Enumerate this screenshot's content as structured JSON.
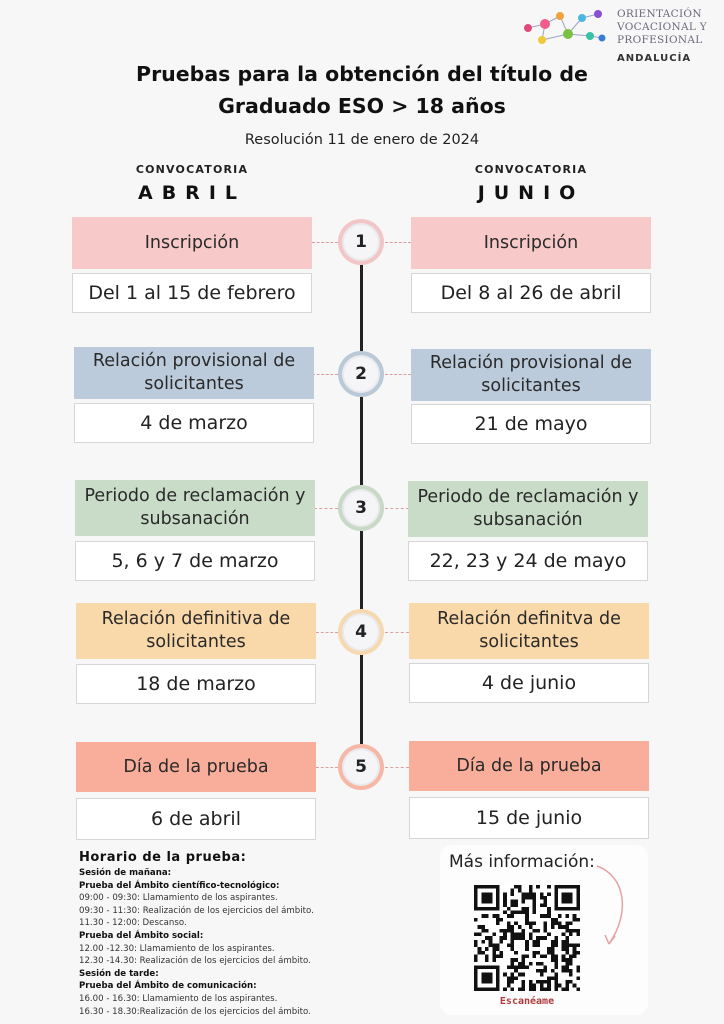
{
  "logo": {
    "lines": [
      "ORIENTACIÓN",
      "VOCACIONAL Y",
      "PROFESIONAL"
    ],
    "region": "ANDALUCÍA",
    "colors": [
      "#e04a7a",
      "#f2a23a",
      "#4bb8e0",
      "#7ac142",
      "#8a4fd0",
      "#f25c8a",
      "#3a7bd5",
      "#f0c83c",
      "#39c2a6"
    ]
  },
  "header": {
    "title_line1": "Pruebas para la obtención del título de",
    "title_line2": "Graduado ESO > 18 años",
    "resolution": "Resolución 11 de enero de 2024"
  },
  "columns": {
    "left": {
      "label": "CONVOCATORIA",
      "name": "ABRIL"
    },
    "right": {
      "label": "CONVOCATORIA",
      "name": "JUNIO"
    }
  },
  "steps": [
    {
      "number": "1",
      "left_title": "Inscripción",
      "left_date": "Del 1 al 15 de febrero",
      "right_title": "Inscripción",
      "right_date": "Del 8 al 26 de abril",
      "color": "#f7c9c9"
    },
    {
      "number": "2",
      "left_title": "Relación provisional de solicitantes",
      "left_date": "4 de marzo",
      "right_title": "Relación provisional de solicitantes",
      "right_date": "21 de mayo",
      "color": "#bccbdb"
    },
    {
      "number": "3",
      "left_title": "Periodo de reclamación y subsanación",
      "left_date": "5, 6 y 7 de marzo",
      "right_title": "Periodo de reclamación y subsanación",
      "right_date": "22, 23 y 24 de mayo",
      "color": "#c9dcc8"
    },
    {
      "number": "4",
      "left_title": "Relación definitiva de solicitantes",
      "left_date": "18 de marzo",
      "right_title": "Relación definitva de solicitantes",
      "right_date": "4 de junio",
      "color": "#f9d8a9"
    },
    {
      "number": "5",
      "left_title": "Día de la prueba",
      "left_date": "6 de abril",
      "right_title": "Día de la prueba",
      "right_date": "15 de junio",
      "color": "#f8ae9a"
    }
  ],
  "schedule": {
    "title": "Horario de la prueba:",
    "lines": [
      {
        "text": "Sesión de mañana:",
        "bold": true
      },
      {
        "text": "Prueba del Ámbito científico-tecnológico:",
        "bold": true
      },
      {
        "text": "09:00 - 09:30: Llamamiento de los aspirantes.",
        "bold": false
      },
      {
        "text": "09:30 - 11:30: Realización de los ejercicios del ámbito.",
        "bold": false
      },
      {
        "text": "11.30 - 12:00: Descanso.",
        "bold": false
      },
      {
        "text": "Prueba del Ámbito social:",
        "bold": true
      },
      {
        "text": "12.00 -12.30: Llamamiento de los aspirantes.",
        "bold": false
      },
      {
        "text": "12.30 -14.30: Realización de los ejercicios del ámbito.",
        "bold": false
      },
      {
        "text": "Sesión de tarde:",
        "bold": true
      },
      {
        "text": "Prueba del Ámbito de comunicación:",
        "bold": true
      },
      {
        "text": "16.00 - 16.30: Llamamiento de los aspirantes.",
        "bold": false
      },
      {
        "text": "16.30 - 18.30:Realización de los ejercicios del ámbito.",
        "bold": false
      }
    ]
  },
  "info": {
    "title": "Más información:",
    "scan_label": "Escanéame",
    "qr_icon": "qr-code-icon",
    "arrow_icon": "curved-arrow-icon"
  }
}
